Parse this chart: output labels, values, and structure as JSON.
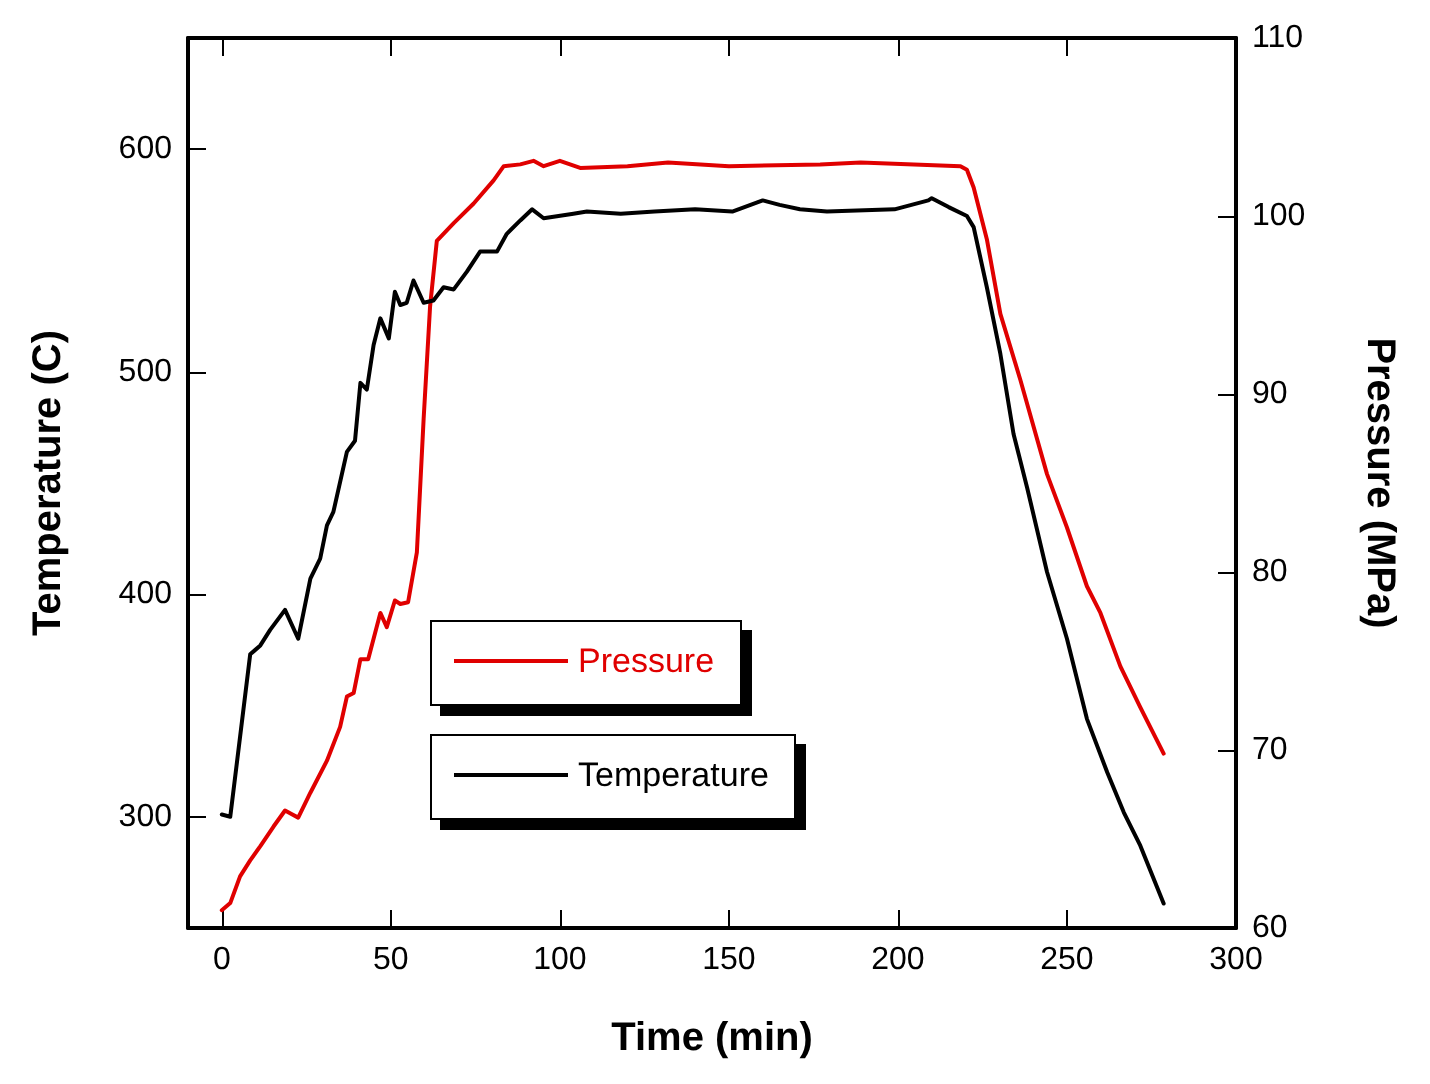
{
  "chart_data": {
    "type": "line",
    "xlabel": "Time (min)",
    "ylabel": "Temperature (C)",
    "y2label": "Pressure (MPa)",
    "xlim": [
      -10,
      300
    ],
    "xticks": [
      0,
      50,
      100,
      150,
      200,
      250,
      300
    ],
    "ylim": [
      250,
      650
    ],
    "yticks": [
      300,
      400,
      500,
      600
    ],
    "y2lim": [
      60,
      110
    ],
    "y2ticks": [
      60,
      70,
      80,
      90,
      100,
      110
    ],
    "grid": false,
    "legend": "center",
    "marker": "none",
    "line_style": "solid",
    "series": [
      {
        "name": "Pressure",
        "color": "#e00000",
        "axis": "y2",
        "x": [
          0,
          2.5,
          5.4,
          8.4,
          11.4,
          15.3,
          18.7,
          20.6,
          22.6,
          26.2,
          31.1,
          35,
          37,
          39,
          41,
          43.3,
          46.9,
          48.8,
          51.2,
          52.8,
          55.1,
          57.7,
          59.7,
          61.6,
          63.6,
          68.6,
          74.5,
          80.4,
          83.4,
          88.3,
          92.2,
          95.2,
          100,
          106,
          120,
          132,
          150,
          177,
          189,
          218.5,
          220.4,
          222.4,
          226.3,
          230.3,
          236.2,
          244.1,
          250,
          255.9,
          259.9,
          265.8,
          271.7,
          278.6
        ],
        "values": [
          61,
          61.4,
          62.9,
          63.8,
          64.6,
          65.7,
          66.6,
          66.4,
          66.2,
          67.6,
          69.4,
          71.3,
          73,
          73.2,
          75.1,
          75.1,
          77.7,
          76.9,
          78.4,
          78.2,
          78.3,
          81.1,
          88.6,
          94.9,
          98.6,
          99.6,
          100.7,
          102,
          102.8,
          102.9,
          103.1,
          102.8,
          103.1,
          102.7,
          102.8,
          103,
          102.8,
          102.9,
          103,
          102.8,
          102.6,
          101.6,
          98.7,
          94.5,
          90.8,
          85.5,
          82.5,
          79.2,
          77.7,
          74.7,
          72.4,
          69.8
        ]
      },
      {
        "name": "Temperature",
        "color": "#000000",
        "x": [
          0,
          2.5,
          8.4,
          11.4,
          14.3,
          18.7,
          22.6,
          26.2,
          29.1,
          31.1,
          33,
          37,
          39.4,
          41,
          42.9,
          44.9,
          46.9,
          49.4,
          51.2,
          52.8,
          54.7,
          56.7,
          59.7,
          62.6,
          65.6,
          68.6,
          72.5,
          76.4,
          81.4,
          84.3,
          88.3,
          91.8,
          95.2,
          104,
          108,
          118,
          128,
          140,
          151,
          160,
          165,
          171,
          179,
          199,
          209,
          210,
          215,
          220.4,
          222.4,
          226.3,
          230.3,
          234.2,
          238.2,
          244.1,
          250,
          255.9,
          261.9,
          266.8,
          271.7,
          278.6
        ],
        "values": [
          301,
          300,
          373,
          377,
          384,
          393,
          380,
          407,
          416,
          431,
          437,
          464,
          469,
          495,
          492,
          512,
          524,
          515,
          536,
          530,
          531,
          541,
          531,
          532,
          538,
          537,
          545,
          554,
          554,
          562,
          568,
          573,
          569,
          571,
          572,
          571,
          572,
          573,
          572,
          577,
          575,
          573,
          572,
          573,
          577,
          578,
          574,
          570,
          565,
          538,
          508,
          472,
          448,
          410,
          380,
          344,
          320,
          302,
          287,
          261
        ]
      }
    ]
  }
}
